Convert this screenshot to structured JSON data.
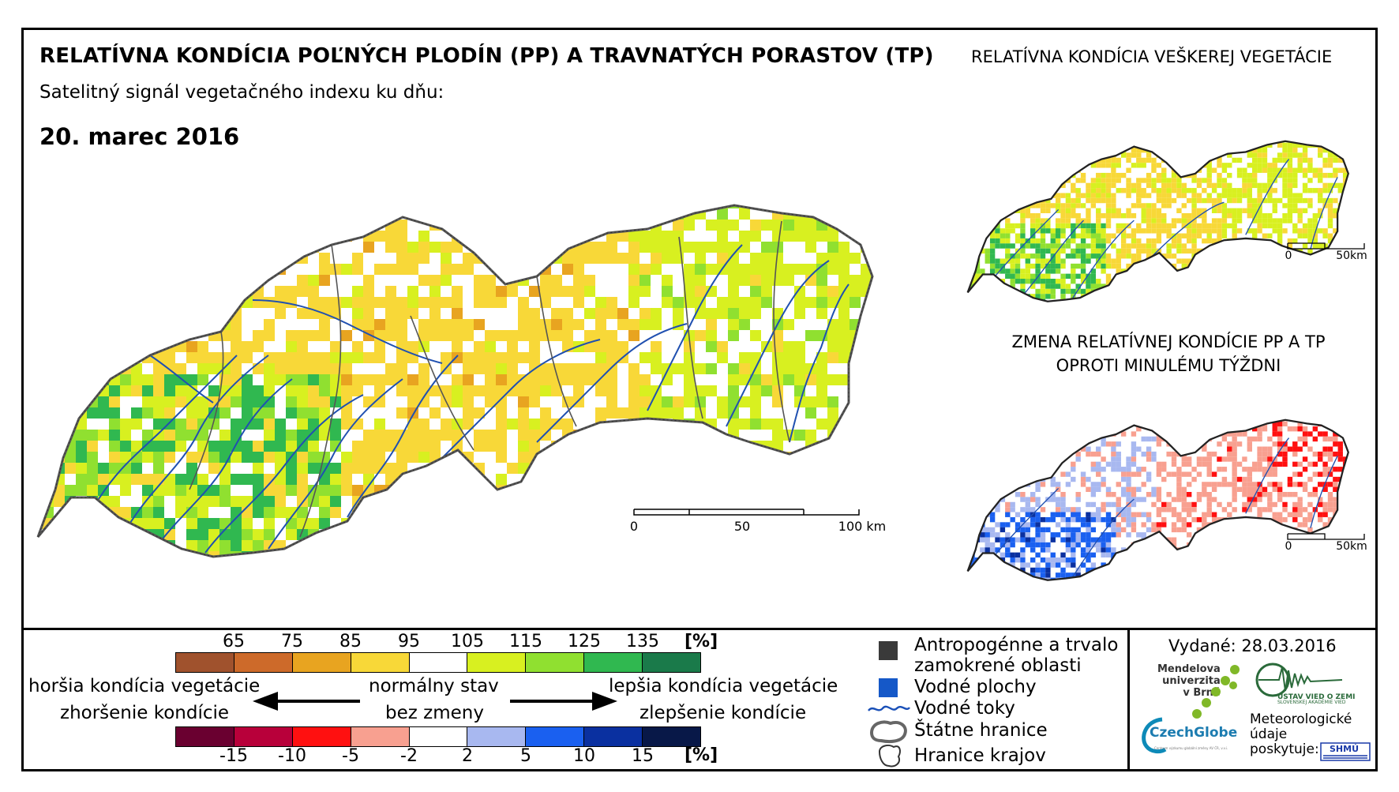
{
  "header": {
    "title": "RELATÍVNA KONDÍCIA POĽNÝCH PLODÍN (PP) A TRAVNATÝCH PORASTOV (TP)",
    "title_right": "RELATÍVNA KONDÍCIA VEŠKEREJ VEGETÁCIE",
    "subtitle": "Satelitný signál vegetačného indexu ku dňu:",
    "date": "20. marec 2016"
  },
  "maps": {
    "main": {
      "scale_ticks": [
        "0",
        "50",
        "100 km"
      ]
    },
    "vegetation": {
      "scale_ticks": [
        "0",
        "50km"
      ]
    },
    "change": {
      "title_line1": "ZMENA RELATÍVNEJ KONDÍCIE PP A TP",
      "title_line2": "OPROTI MINULÉMU TÝŽDNI",
      "scale_ticks": [
        "0",
        "50km"
      ]
    }
  },
  "legend": {
    "condition_ticks": [
      "65",
      "75",
      "85",
      "95",
      "105",
      "115",
      "125",
      "135"
    ],
    "condition_unit": "[%]",
    "condition_colors": [
      "#a0522d",
      "#cd6a2a",
      "#e8a420",
      "#f8d838",
      "#ffffff",
      "#d8f020",
      "#90e030",
      "#30b850",
      "#1a7a4a"
    ],
    "change_ticks": [
      "-15",
      "-10",
      "-5",
      "-2",
      "2",
      "5",
      "10",
      "15"
    ],
    "change_unit": "[%]",
    "change_colors": [
      "#6a0030",
      "#b8003a",
      "#ff1010",
      "#f8a090",
      "#ffffff",
      "#a8b8f0",
      "#1a60f0",
      "#0a30a0",
      "#081848"
    ],
    "left_top": "horšia kondícia vegetácie",
    "left_bottom": "zhoršenie kondície",
    "center_top": "normálny stav",
    "center_bottom": "bez zmeny",
    "right_top": "lepšia kondícia vegetácie",
    "right_bottom": "zlepšenie kondície",
    "symbols": {
      "anthropogenic": "Antropogénne a trvalo zamokrené oblasti",
      "water_bodies": "Vodné plochy",
      "water_streams": "Vodné toky",
      "state_border": "Štátne hranice",
      "region_border": "Hranice krajov"
    }
  },
  "footer": {
    "issued": "Vydané: 28.03.2016",
    "mendel": [
      "Mendelova",
      "univerzita",
      "v Brně"
    ],
    "czechglobe": "CzechGlobe",
    "czechglobe_sub": "Centrum výzkumu globální změny AV ČR, v.v.i.",
    "uvoz": "ÚSTAV VIED O ZEMI",
    "uvoz_sub": "SLOVENSKEJ AKADÉMIE VIED",
    "meteo": [
      "Meteorologické",
      "údaje",
      "poskytuje:"
    ],
    "shmu": "SHMÚ"
  }
}
